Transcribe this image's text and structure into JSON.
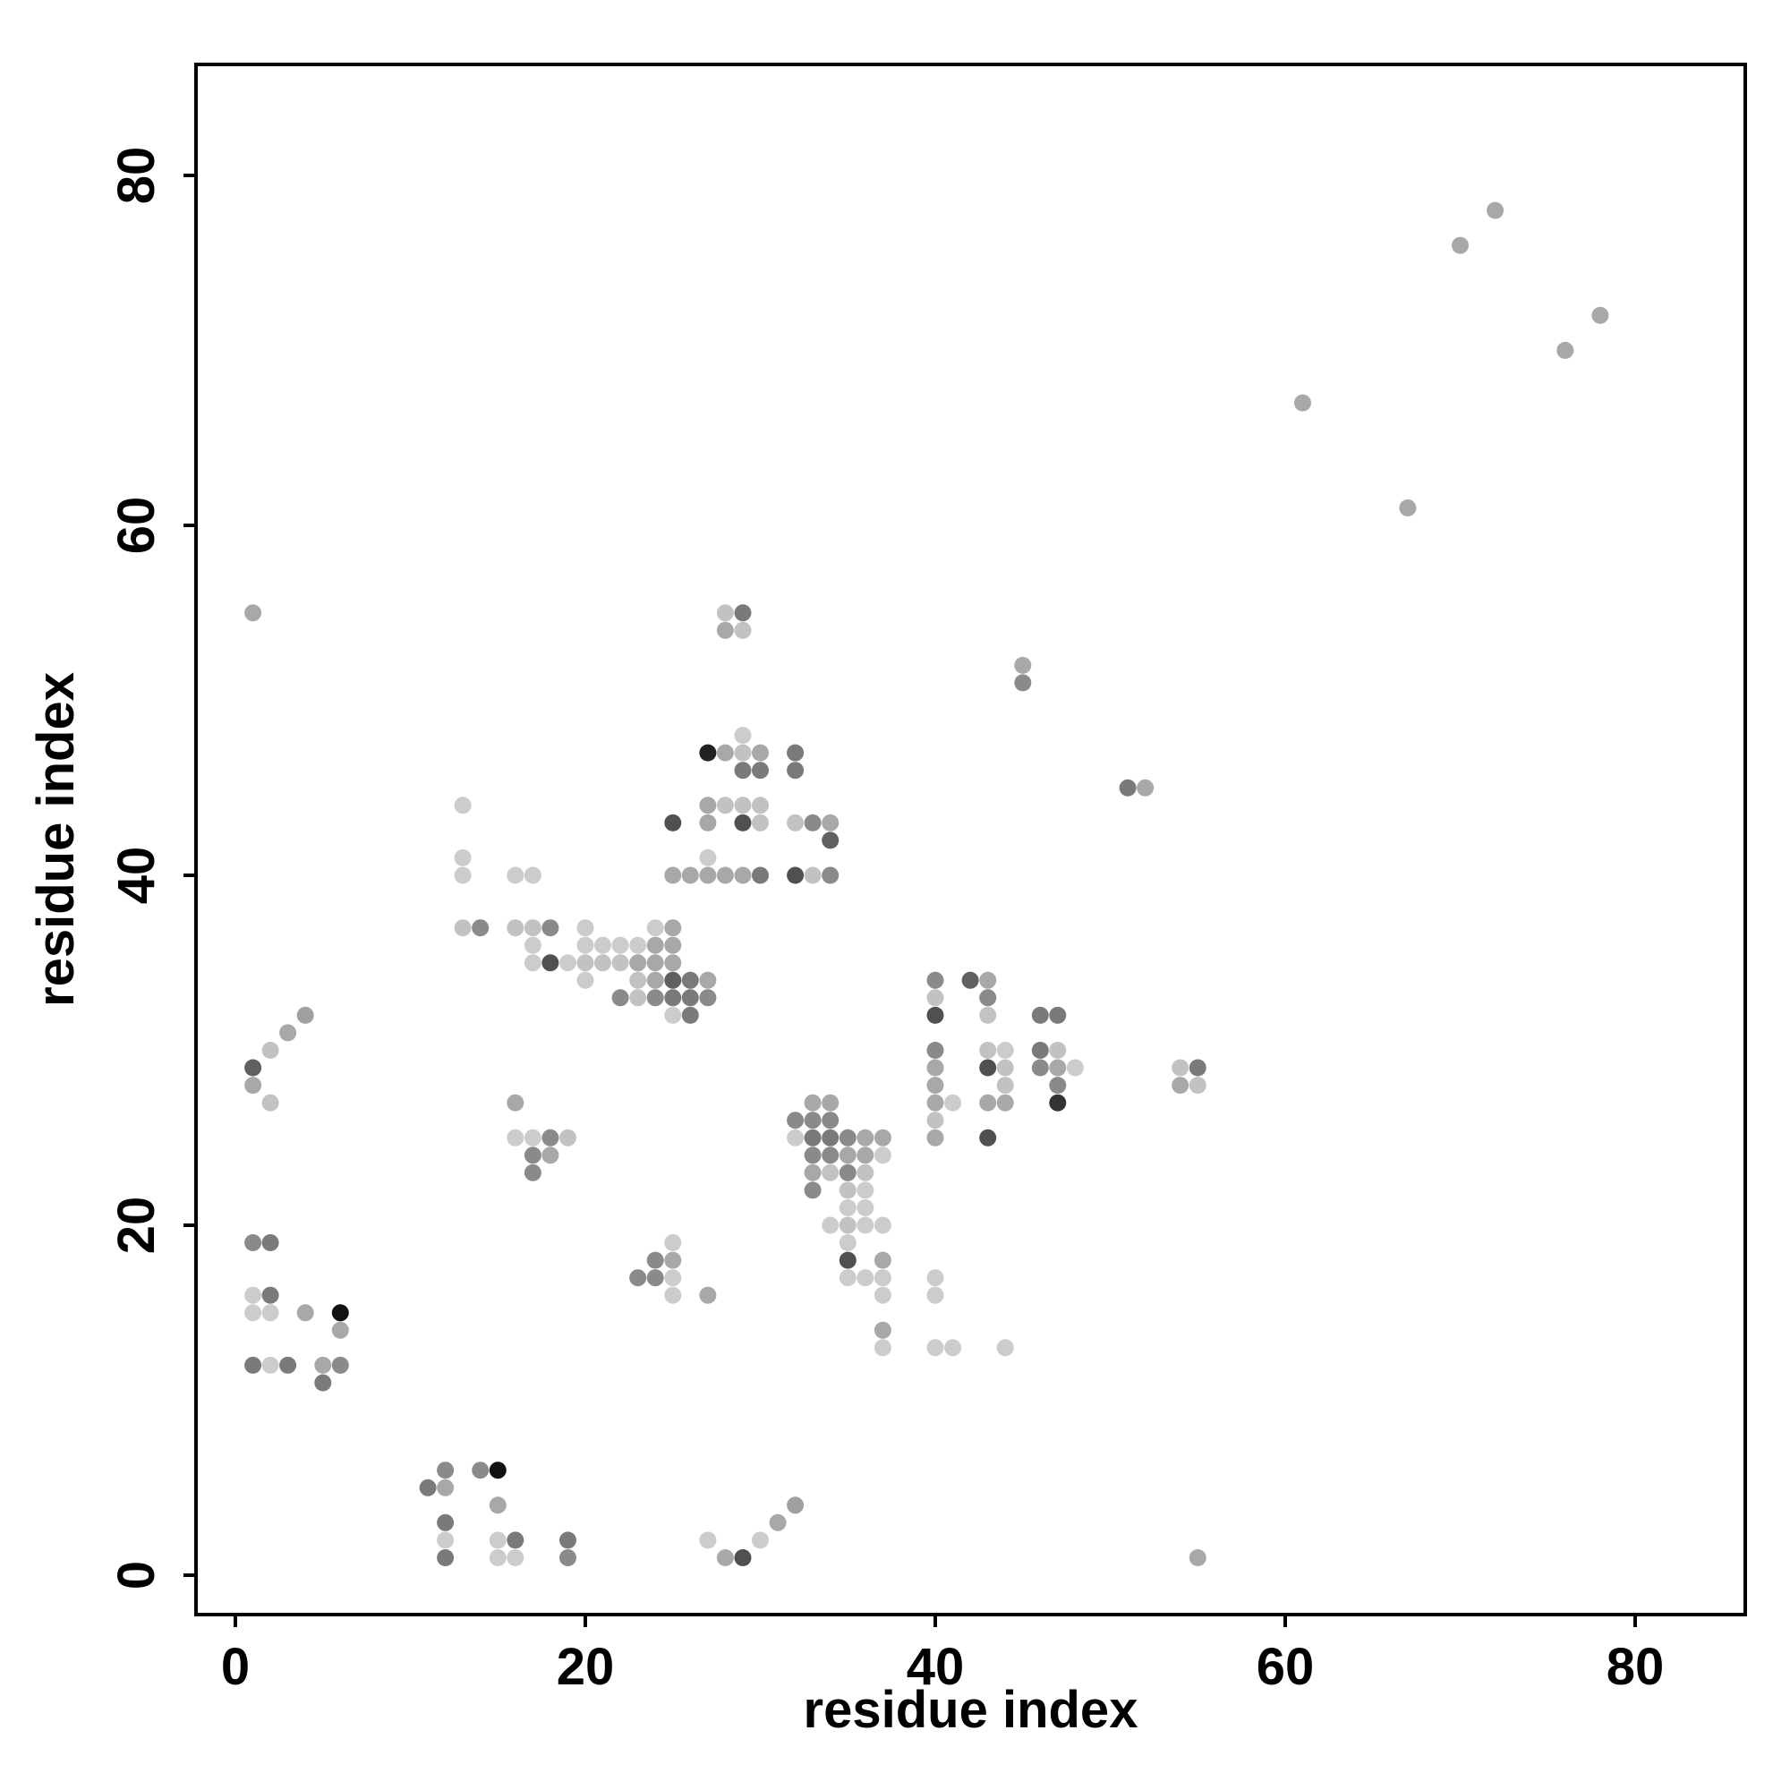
{
  "chart_data": {
    "type": "scatter",
    "title": "",
    "xlabel": "residue index",
    "ylabel": "residue index",
    "xlim": [
      -2.2,
      86.2
    ],
    "ylim": [
      -2.2,
      86.2
    ],
    "x_ticks": [
      0,
      20,
      40,
      60,
      80
    ],
    "y_ticks": [
      0,
      20,
      40,
      60,
      80
    ],
    "grid": false,
    "legend": "none",
    "points": [
      {
        "x": 1,
        "y": 55,
        "c": "#a8a8a8"
      },
      {
        "x": 1,
        "y": 29,
        "c": "#606060"
      },
      {
        "x": 1,
        "y": 28,
        "c": "#a8a8a8"
      },
      {
        "x": 2,
        "y": 30,
        "c": "#c2c2c2"
      },
      {
        "x": 3,
        "y": 31,
        "c": "#a8a8a8"
      },
      {
        "x": 4,
        "y": 32,
        "c": "#a0a0a0"
      },
      {
        "x": 2,
        "y": 27,
        "c": "#c2c2c2"
      },
      {
        "x": 1,
        "y": 19,
        "c": "#8a8a8a"
      },
      {
        "x": 2,
        "y": 19,
        "c": "#7a7a7a"
      },
      {
        "x": 1,
        "y": 16,
        "c": "#cccccc"
      },
      {
        "x": 2,
        "y": 16,
        "c": "#7a7a7a"
      },
      {
        "x": 1,
        "y": 15,
        "c": "#cccccc"
      },
      {
        "x": 2,
        "y": 15,
        "c": "#cccccc"
      },
      {
        "x": 4,
        "y": 15,
        "c": "#a8a8a8"
      },
      {
        "x": 6,
        "y": 15,
        "c": "#111111"
      },
      {
        "x": 6,
        "y": 14,
        "c": "#a8a8a8"
      },
      {
        "x": 1,
        "y": 12,
        "c": "#7a7a7a"
      },
      {
        "x": 2,
        "y": 12,
        "c": "#cccccc"
      },
      {
        "x": 3,
        "y": 12,
        "c": "#7a7a7a"
      },
      {
        "x": 5,
        "y": 12,
        "c": "#a8a8a8"
      },
      {
        "x": 6,
        "y": 12,
        "c": "#8a8a8a"
      },
      {
        "x": 5,
        "y": 11,
        "c": "#7a7a7a"
      },
      {
        "x": 11,
        "y": 5,
        "c": "#7a7a7a"
      },
      {
        "x": 12,
        "y": 6,
        "c": "#8a8a8a"
      },
      {
        "x": 12,
        "y": 5,
        "c": "#a8a8a8"
      },
      {
        "x": 14,
        "y": 6,
        "c": "#8a8a8a"
      },
      {
        "x": 15,
        "y": 6,
        "c": "#111111"
      },
      {
        "x": 15,
        "y": 4,
        "c": "#a8a8a8"
      },
      {
        "x": 12,
        "y": 3,
        "c": "#7a7a7a"
      },
      {
        "x": 12,
        "y": 2,
        "c": "#cccccc"
      },
      {
        "x": 12,
        "y": 1,
        "c": "#7a7a7a"
      },
      {
        "x": 15,
        "y": 2,
        "c": "#cccccc"
      },
      {
        "x": 16,
        "y": 2,
        "c": "#7a7a7a"
      },
      {
        "x": 15,
        "y": 1,
        "c": "#cccccc"
      },
      {
        "x": 16,
        "y": 1,
        "c": "#cccccc"
      },
      {
        "x": 19,
        "y": 2,
        "c": "#7a7a7a"
      },
      {
        "x": 19,
        "y": 1,
        "c": "#8a8a8a"
      },
      {
        "x": 27,
        "y": 2,
        "c": "#cccccc"
      },
      {
        "x": 28,
        "y": 1,
        "c": "#a8a8a8"
      },
      {
        "x": 29,
        "y": 1,
        "c": "#505050"
      },
      {
        "x": 30,
        "y": 2,
        "c": "#cccccc"
      },
      {
        "x": 31,
        "y": 3,
        "c": "#a8a8a8"
      },
      {
        "x": 32,
        "y": 4,
        "c": "#a0a0a0"
      },
      {
        "x": 55,
        "y": 1,
        "c": "#a8a8a8"
      },
      {
        "x": 13,
        "y": 44,
        "c": "#cccccc"
      },
      {
        "x": 13,
        "y": 41,
        "c": "#cccccc"
      },
      {
        "x": 13,
        "y": 40,
        "c": "#cccccc"
      },
      {
        "x": 16,
        "y": 40,
        "c": "#cccccc"
      },
      {
        "x": 17,
        "y": 40,
        "c": "#cccccc"
      },
      {
        "x": 13,
        "y": 37,
        "c": "#c2c2c2"
      },
      {
        "x": 14,
        "y": 37,
        "c": "#8a8a8a"
      },
      {
        "x": 16,
        "y": 37,
        "c": "#c2c2c2"
      },
      {
        "x": 17,
        "y": 37,
        "c": "#c2c2c2"
      },
      {
        "x": 18,
        "y": 37,
        "c": "#8a8a8a"
      },
      {
        "x": 17,
        "y": 36,
        "c": "#cccccc"
      },
      {
        "x": 17,
        "y": 35,
        "c": "#cccccc"
      },
      {
        "x": 18,
        "y": 35,
        "c": "#505050"
      },
      {
        "x": 19,
        "y": 35,
        "c": "#cccccc"
      },
      {
        "x": 20,
        "y": 37,
        "c": "#cccccc"
      },
      {
        "x": 20,
        "y": 36,
        "c": "#cccccc"
      },
      {
        "x": 21,
        "y": 36,
        "c": "#cccccc"
      },
      {
        "x": 22,
        "y": 36,
        "c": "#cccccc"
      },
      {
        "x": 23,
        "y": 36,
        "c": "#cccccc"
      },
      {
        "x": 24,
        "y": 37,
        "c": "#cccccc"
      },
      {
        "x": 25,
        "y": 37,
        "c": "#a8a8a8"
      },
      {
        "x": 24,
        "y": 36,
        "c": "#a8a8a8"
      },
      {
        "x": 25,
        "y": 36,
        "c": "#a8a8a8"
      },
      {
        "x": 20,
        "y": 35,
        "c": "#c2c2c2"
      },
      {
        "x": 21,
        "y": 35,
        "c": "#c2c2c2"
      },
      {
        "x": 22,
        "y": 35,
        "c": "#c2c2c2"
      },
      {
        "x": 23,
        "y": 35,
        "c": "#a8a8a8"
      },
      {
        "x": 24,
        "y": 35,
        "c": "#a8a8a8"
      },
      {
        "x": 25,
        "y": 35,
        "c": "#a8a8a8"
      },
      {
        "x": 20,
        "y": 34,
        "c": "#cccccc"
      },
      {
        "x": 23,
        "y": 34,
        "c": "#c2c2c2"
      },
      {
        "x": 24,
        "y": 34,
        "c": "#a8a8a8"
      },
      {
        "x": 25,
        "y": 34,
        "c": "#606060"
      },
      {
        "x": 26,
        "y": 34,
        "c": "#7a7a7a"
      },
      {
        "x": 27,
        "y": 34,
        "c": "#a8a8a8"
      },
      {
        "x": 22,
        "y": 33,
        "c": "#8a8a8a"
      },
      {
        "x": 23,
        "y": 33,
        "c": "#c2c2c2"
      },
      {
        "x": 24,
        "y": 33,
        "c": "#8a8a8a"
      },
      {
        "x": 25,
        "y": 33,
        "c": "#7a7a7a"
      },
      {
        "x": 26,
        "y": 33,
        "c": "#7a7a7a"
      },
      {
        "x": 27,
        "y": 33,
        "c": "#8a8a8a"
      },
      {
        "x": 25,
        "y": 32,
        "c": "#cccccc"
      },
      {
        "x": 26,
        "y": 32,
        "c": "#7a7a7a"
      },
      {
        "x": 28,
        "y": 55,
        "c": "#c2c2c2"
      },
      {
        "x": 29,
        "y": 55,
        "c": "#7a7a7a"
      },
      {
        "x": 28,
        "y": 54,
        "c": "#a8a8a8"
      },
      {
        "x": 29,
        "y": 54,
        "c": "#c2c2c2"
      },
      {
        "x": 29,
        "y": 48,
        "c": "#cccccc"
      },
      {
        "x": 27,
        "y": 47,
        "c": "#222222"
      },
      {
        "x": 28,
        "y": 47,
        "c": "#a8a8a8"
      },
      {
        "x": 29,
        "y": 47,
        "c": "#c2c2c2"
      },
      {
        "x": 30,
        "y": 47,
        "c": "#a8a8a8"
      },
      {
        "x": 29,
        "y": 46,
        "c": "#7a7a7a"
      },
      {
        "x": 30,
        "y": 46,
        "c": "#7a7a7a"
      },
      {
        "x": 32,
        "y": 47,
        "c": "#7a7a7a"
      },
      {
        "x": 32,
        "y": 46,
        "c": "#7a7a7a"
      },
      {
        "x": 27,
        "y": 44,
        "c": "#a8a8a8"
      },
      {
        "x": 28,
        "y": 44,
        "c": "#c2c2c2"
      },
      {
        "x": 29,
        "y": 44,
        "c": "#c2c2c2"
      },
      {
        "x": 30,
        "y": 44,
        "c": "#c2c2c2"
      },
      {
        "x": 25,
        "y": 43,
        "c": "#505050"
      },
      {
        "x": 27,
        "y": 43,
        "c": "#a8a8a8"
      },
      {
        "x": 29,
        "y": 43,
        "c": "#505050"
      },
      {
        "x": 30,
        "y": 43,
        "c": "#c2c2c2"
      },
      {
        "x": 32,
        "y": 43,
        "c": "#c2c2c2"
      },
      {
        "x": 33,
        "y": 43,
        "c": "#8a8a8a"
      },
      {
        "x": 34,
        "y": 43,
        "c": "#a8a8a8"
      },
      {
        "x": 34,
        "y": 42,
        "c": "#606060"
      },
      {
        "x": 27,
        "y": 41,
        "c": "#cccccc"
      },
      {
        "x": 25,
        "y": 40,
        "c": "#a8a8a8"
      },
      {
        "x": 26,
        "y": 40,
        "c": "#a8a8a8"
      },
      {
        "x": 27,
        "y": 40,
        "c": "#a8a8a8"
      },
      {
        "x": 28,
        "y": 40,
        "c": "#a8a8a8"
      },
      {
        "x": 29,
        "y": 40,
        "c": "#a8a8a8"
      },
      {
        "x": 30,
        "y": 40,
        "c": "#7a7a7a"
      },
      {
        "x": 32,
        "y": 40,
        "c": "#505050"
      },
      {
        "x": 33,
        "y": 40,
        "c": "#c2c2c2"
      },
      {
        "x": 34,
        "y": 40,
        "c": "#8a8a8a"
      },
      {
        "x": 16,
        "y": 27,
        "c": "#a8a8a8"
      },
      {
        "x": 16,
        "y": 25,
        "c": "#cccccc"
      },
      {
        "x": 17,
        "y": 25,
        "c": "#cccccc"
      },
      {
        "x": 18,
        "y": 25,
        "c": "#8a8a8a"
      },
      {
        "x": 19,
        "y": 25,
        "c": "#c2c2c2"
      },
      {
        "x": 17,
        "y": 24,
        "c": "#8a8a8a"
      },
      {
        "x": 18,
        "y": 24,
        "c": "#a8a8a8"
      },
      {
        "x": 17,
        "y": 23,
        "c": "#8a8a8a"
      },
      {
        "x": 25,
        "y": 19,
        "c": "#cccccc"
      },
      {
        "x": 24,
        "y": 18,
        "c": "#8a8a8a"
      },
      {
        "x": 25,
        "y": 18,
        "c": "#a8a8a8"
      },
      {
        "x": 23,
        "y": 17,
        "c": "#8a8a8a"
      },
      {
        "x": 24,
        "y": 17,
        "c": "#8a8a8a"
      },
      {
        "x": 25,
        "y": 17,
        "c": "#cccccc"
      },
      {
        "x": 25,
        "y": 16,
        "c": "#cccccc"
      },
      {
        "x": 27,
        "y": 16,
        "c": "#a8a8a8"
      },
      {
        "x": 32,
        "y": 26,
        "c": "#8a8a8a"
      },
      {
        "x": 33,
        "y": 27,
        "c": "#a8a8a8"
      },
      {
        "x": 34,
        "y": 27,
        "c": "#a8a8a8"
      },
      {
        "x": 33,
        "y": 26,
        "c": "#8a8a8a"
      },
      {
        "x": 34,
        "y": 26,
        "c": "#8a8a8a"
      },
      {
        "x": 32,
        "y": 25,
        "c": "#cccccc"
      },
      {
        "x": 33,
        "y": 25,
        "c": "#7a7a7a"
      },
      {
        "x": 34,
        "y": 25,
        "c": "#7a7a7a"
      },
      {
        "x": 35,
        "y": 25,
        "c": "#8a8a8a"
      },
      {
        "x": 36,
        "y": 25,
        "c": "#a8a8a8"
      },
      {
        "x": 37,
        "y": 25,
        "c": "#a8a8a8"
      },
      {
        "x": 33,
        "y": 24,
        "c": "#8a8a8a"
      },
      {
        "x": 34,
        "y": 24,
        "c": "#8a8a8a"
      },
      {
        "x": 35,
        "y": 24,
        "c": "#a8a8a8"
      },
      {
        "x": 36,
        "y": 24,
        "c": "#a8a8a8"
      },
      {
        "x": 37,
        "y": 24,
        "c": "#cccccc"
      },
      {
        "x": 33,
        "y": 23,
        "c": "#a8a8a8"
      },
      {
        "x": 34,
        "y": 23,
        "c": "#c2c2c2"
      },
      {
        "x": 35,
        "y": 23,
        "c": "#8a8a8a"
      },
      {
        "x": 36,
        "y": 23,
        "c": "#c2c2c2"
      },
      {
        "x": 33,
        "y": 22,
        "c": "#8a8a8a"
      },
      {
        "x": 35,
        "y": 22,
        "c": "#c2c2c2"
      },
      {
        "x": 36,
        "y": 22,
        "c": "#cccccc"
      },
      {
        "x": 35,
        "y": 21,
        "c": "#cccccc"
      },
      {
        "x": 36,
        "y": 21,
        "c": "#cccccc"
      },
      {
        "x": 34,
        "y": 20,
        "c": "#cccccc"
      },
      {
        "x": 35,
        "y": 20,
        "c": "#c2c2c2"
      },
      {
        "x": 36,
        "y": 20,
        "c": "#cccccc"
      },
      {
        "x": 37,
        "y": 20,
        "c": "#cccccc"
      },
      {
        "x": 35,
        "y": 19,
        "c": "#cccccc"
      },
      {
        "x": 35,
        "y": 18,
        "c": "#505050"
      },
      {
        "x": 37,
        "y": 18,
        "c": "#a8a8a8"
      },
      {
        "x": 35,
        "y": 17,
        "c": "#cccccc"
      },
      {
        "x": 36,
        "y": 17,
        "c": "#cccccc"
      },
      {
        "x": 37,
        "y": 17,
        "c": "#cccccc"
      },
      {
        "x": 37,
        "y": 16,
        "c": "#cccccc"
      },
      {
        "x": 37,
        "y": 14,
        "c": "#a8a8a8"
      },
      {
        "x": 37,
        "y": 13,
        "c": "#cccccc"
      },
      {
        "x": 40,
        "y": 17,
        "c": "#cccccc"
      },
      {
        "x": 40,
        "y": 16,
        "c": "#cccccc"
      },
      {
        "x": 40,
        "y": 13,
        "c": "#cccccc"
      },
      {
        "x": 41,
        "y": 13,
        "c": "#cccccc"
      },
      {
        "x": 44,
        "y": 13,
        "c": "#cccccc"
      },
      {
        "x": 40,
        "y": 34,
        "c": "#8a8a8a"
      },
      {
        "x": 40,
        "y": 33,
        "c": "#c2c2c2"
      },
      {
        "x": 40,
        "y": 32,
        "c": "#505050"
      },
      {
        "x": 40,
        "y": 30,
        "c": "#8a8a8a"
      },
      {
        "x": 40,
        "y": 29,
        "c": "#a8a8a8"
      },
      {
        "x": 40,
        "y": 28,
        "c": "#a8a8a8"
      },
      {
        "x": 40,
        "y": 27,
        "c": "#a8a8a8"
      },
      {
        "x": 41,
        "y": 27,
        "c": "#cccccc"
      },
      {
        "x": 40,
        "y": 26,
        "c": "#c2c2c2"
      },
      {
        "x": 40,
        "y": 25,
        "c": "#a8a8a8"
      },
      {
        "x": 42,
        "y": 34,
        "c": "#606060"
      },
      {
        "x": 43,
        "y": 34,
        "c": "#a8a8a8"
      },
      {
        "x": 43,
        "y": 33,
        "c": "#8a8a8a"
      },
      {
        "x": 43,
        "y": 32,
        "c": "#c2c2c2"
      },
      {
        "x": 43,
        "y": 30,
        "c": "#c2c2c2"
      },
      {
        "x": 44,
        "y": 30,
        "c": "#cccccc"
      },
      {
        "x": 43,
        "y": 29,
        "c": "#505050"
      },
      {
        "x": 44,
        "y": 29,
        "c": "#c2c2c2"
      },
      {
        "x": 44,
        "y": 28,
        "c": "#c2c2c2"
      },
      {
        "x": 43,
        "y": 27,
        "c": "#a8a8a8"
      },
      {
        "x": 44,
        "y": 27,
        "c": "#a8a8a8"
      },
      {
        "x": 43,
        "y": 25,
        "c": "#505050"
      },
      {
        "x": 46,
        "y": 32,
        "c": "#7a7a7a"
      },
      {
        "x": 47,
        "y": 32,
        "c": "#7a7a7a"
      },
      {
        "x": 46,
        "y": 30,
        "c": "#7a7a7a"
      },
      {
        "x": 47,
        "y": 30,
        "c": "#c2c2c2"
      },
      {
        "x": 46,
        "y": 29,
        "c": "#8a8a8a"
      },
      {
        "x": 47,
        "y": 29,
        "c": "#a8a8a8"
      },
      {
        "x": 48,
        "y": 29,
        "c": "#cccccc"
      },
      {
        "x": 47,
        "y": 28,
        "c": "#8a8a8a"
      },
      {
        "x": 47,
        "y": 27,
        "c": "#333333"
      },
      {
        "x": 54,
        "y": 29,
        "c": "#c2c2c2"
      },
      {
        "x": 55,
        "y": 29,
        "c": "#7a7a7a"
      },
      {
        "x": 54,
        "y": 28,
        "c": "#a8a8a8"
      },
      {
        "x": 55,
        "y": 28,
        "c": "#c2c2c2"
      },
      {
        "x": 45,
        "y": 52,
        "c": "#a8a8a8"
      },
      {
        "x": 45,
        "y": 51,
        "c": "#8a8a8a"
      },
      {
        "x": 51,
        "y": 45,
        "c": "#7a7a7a"
      },
      {
        "x": 52,
        "y": 45,
        "c": "#a8a8a8"
      },
      {
        "x": 61,
        "y": 67,
        "c": "#a8a8a8"
      },
      {
        "x": 67,
        "y": 61,
        "c": "#a8a8a8"
      },
      {
        "x": 70,
        "y": 76,
        "c": "#a8a8a8"
      },
      {
        "x": 72,
        "y": 78,
        "c": "#a8a8a8"
      },
      {
        "x": 76,
        "y": 70,
        "c": "#a8a8a8"
      },
      {
        "x": 78,
        "y": 72,
        "c": "#a8a8a8"
      }
    ]
  }
}
